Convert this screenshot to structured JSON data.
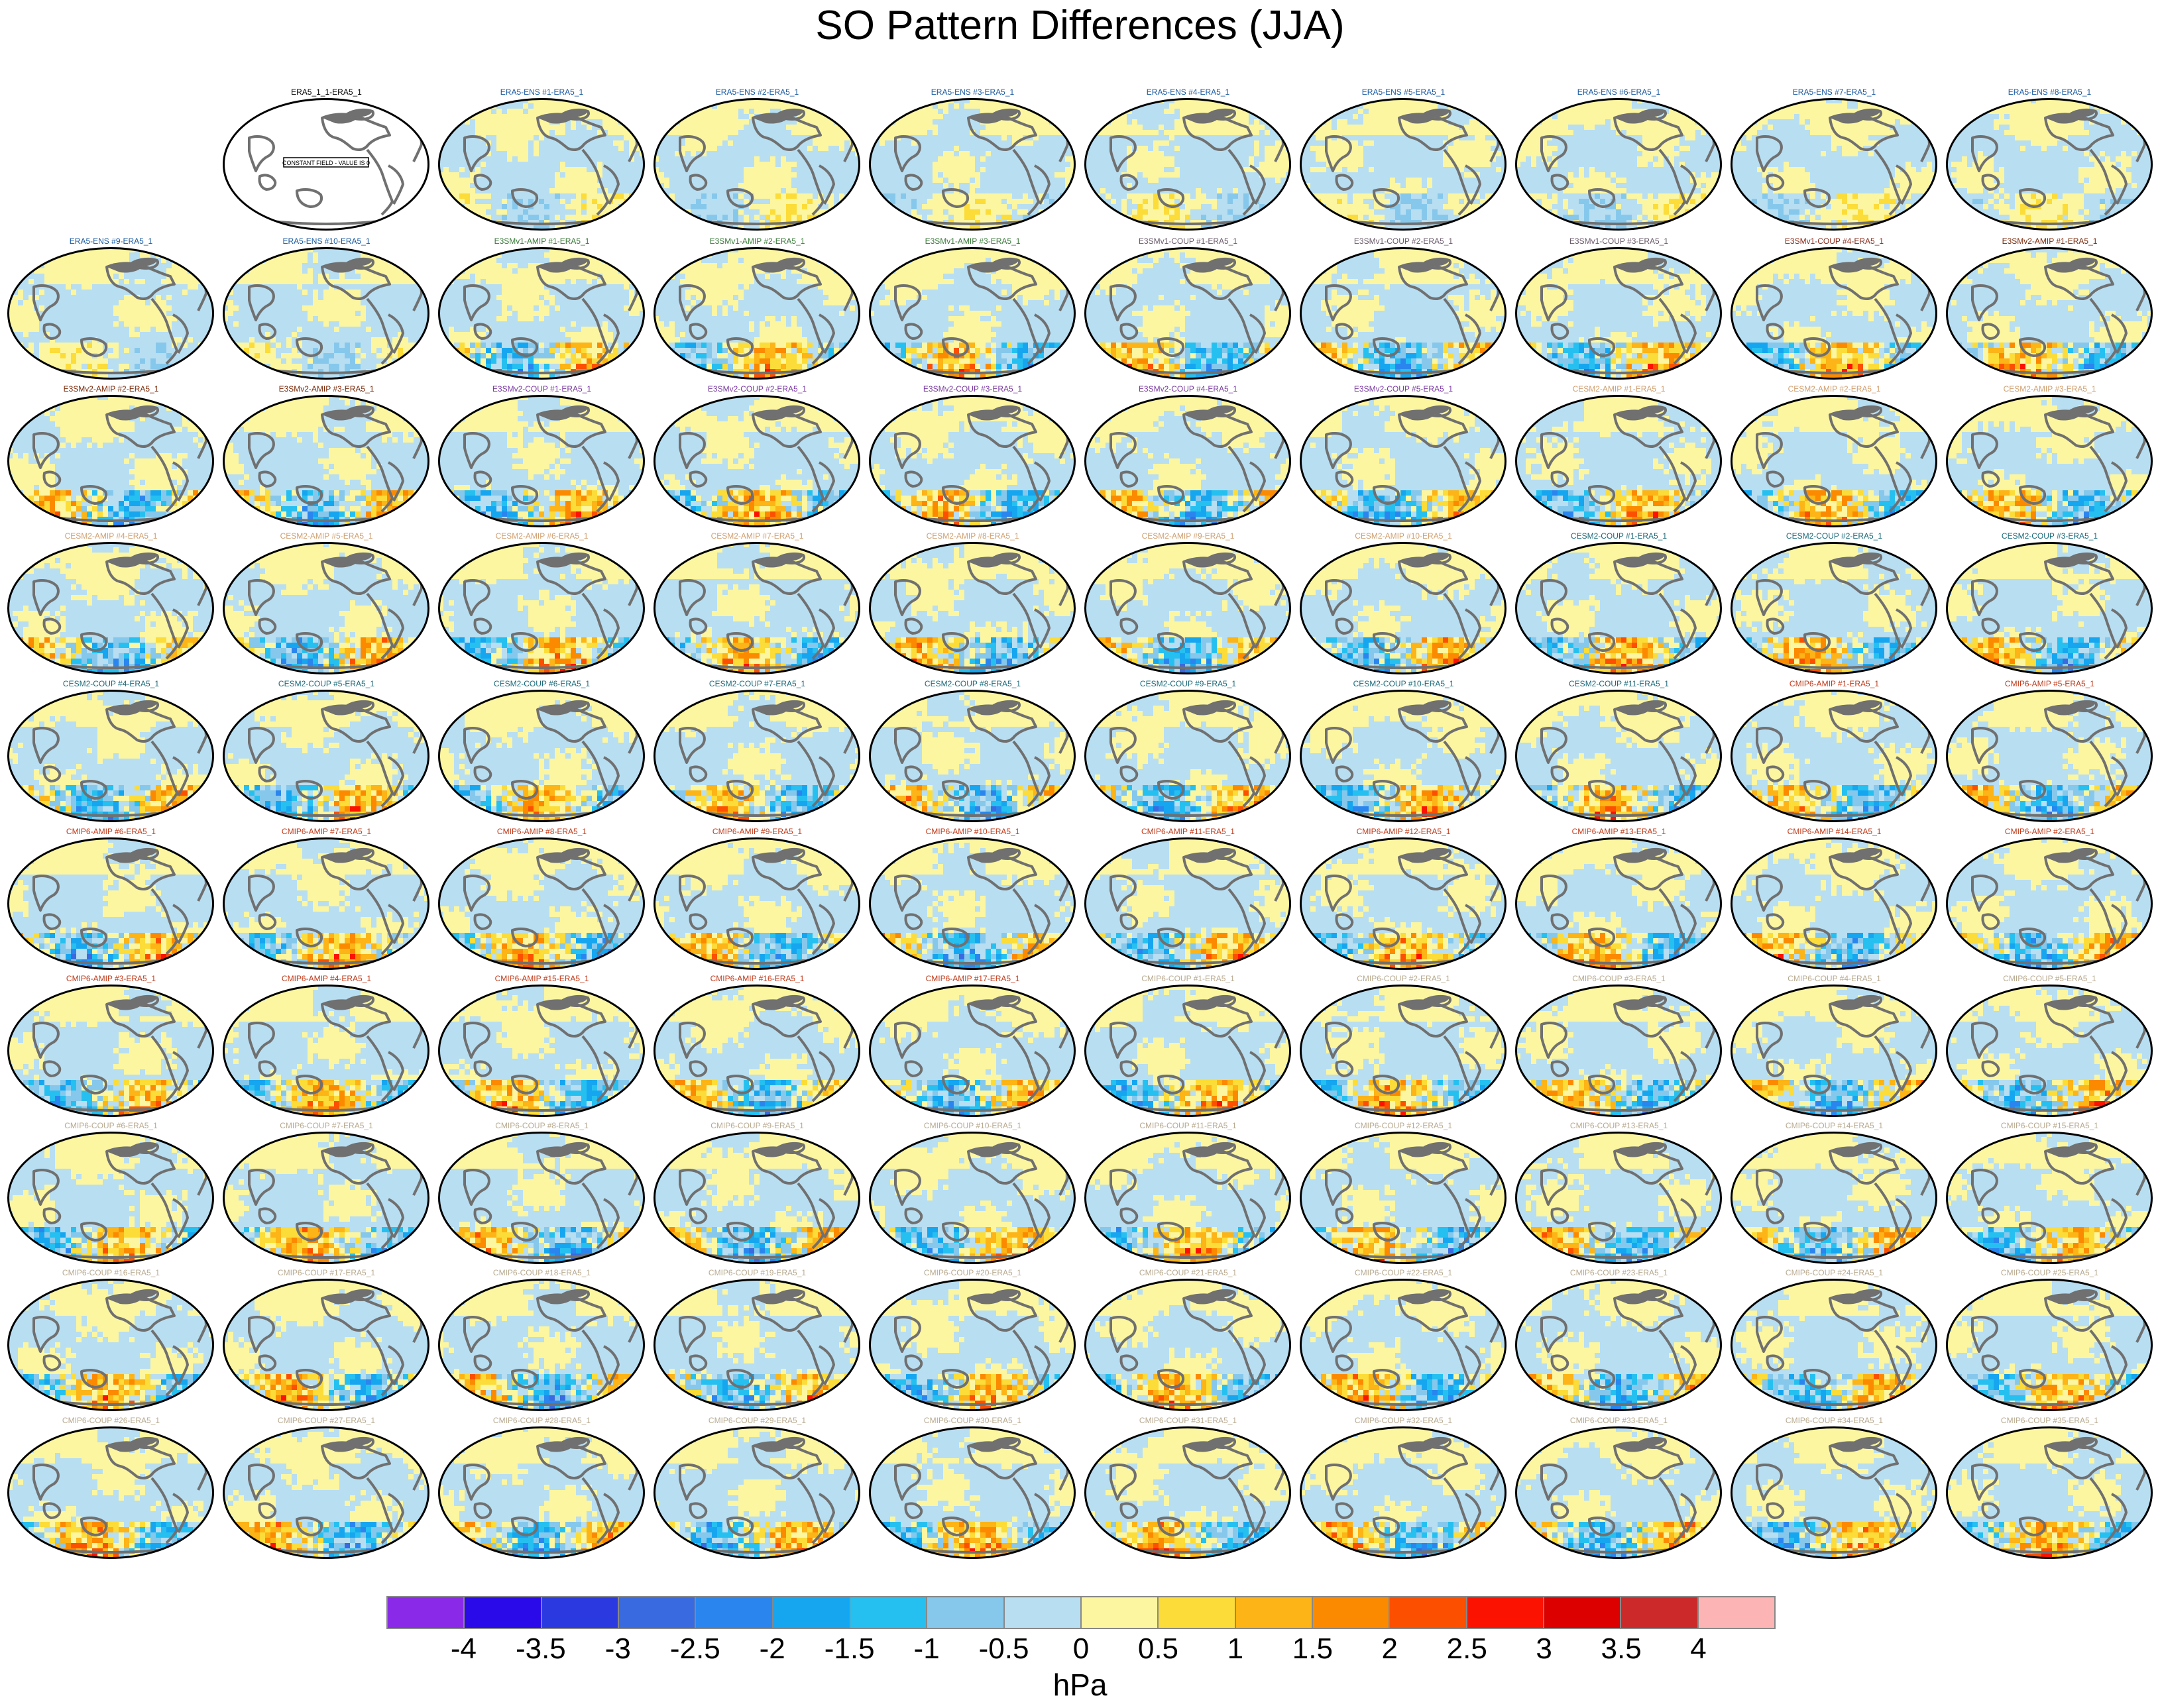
{
  "title": "SO Pattern Differences (JJA)",
  "panel_labels": [
    "ERA5_1_1-ERA5_1",
    "ERA5-ENS   #1-ERA5_1",
    "ERA5-ENS   #2-ERA5_1",
    "ERA5-ENS   #3-ERA5_1",
    "ERA5-ENS   #4-ERA5_1",
    "ERA5-ENS   #5-ERA5_1",
    "ERA5-ENS   #6-ERA5_1",
    "ERA5-ENS   #7-ERA5_1",
    "ERA5-ENS   #8-ERA5_1",
    "ERA5-ENS   #9-ERA5_1",
    "ERA5-ENS   #10-ERA5_1",
    "E3SMv1-AMIP #1-ERA5_1",
    "E3SMv1-AMIP #2-ERA5_1",
    "E3SMv1-AMIP #3-ERA5_1",
    "E3SMv1-COUP #1-ERA5_1",
    "E3SMv1-COUP #2-ERA5_1",
    "E3SMv1-COUP #3-ERA5_1",
    "E3SMv1-COUP #4-ERA5_1",
    "E3SMv2-AMIP #1-ERA5_1",
    "E3SMv2-AMIP #2-ERA5_1",
    "E3SMv2-AMIP #3-ERA5_1",
    "E3SMv2-COUP #1-ERA5_1",
    "E3SMv2-COUP #2-ERA5_1",
    "E3SMv2-COUP #3-ERA5_1",
    "E3SMv2-COUP #4-ERA5_1",
    "E3SMv2-COUP #5-ERA5_1",
    "CESM2-AMIP #1-ERA5_1",
    "CESM2-AMIP #2-ERA5_1",
    "CESM2-AMIP #3-ERA5_1",
    "CESM2-AMIP #4-ERA5_1",
    "CESM2-AMIP #5-ERA5_1",
    "CESM2-AMIP #6-ERA5_1",
    "CESM2-AMIP #7-ERA5_1",
    "CESM2-AMIP #8-ERA5_1",
    "CESM2-AMIP #9-ERA5_1",
    "CESM2-AMIP #10-ERA5_1",
    "CESM2-COUP #1-ERA5_1",
    "CESM2-COUP #2-ERA5_1",
    "CESM2-COUP #3-ERA5_1",
    "CESM2-COUP #4-ERA5_1",
    "CESM2-COUP #5-ERA5_1",
    "CESM2-COUP #6-ERA5_1",
    "CESM2-COUP #7-ERA5_1",
    "CESM2-COUP #8-ERA5_1",
    "CESM2-COUP #9-ERA5_1",
    "CESM2-COUP #10-ERA5_1",
    "CESM2-COUP #11-ERA5_1",
    "CMIP6-AMIP #1-ERA5_1",
    "CMIP6-AMIP #5-ERA5_1",
    "CMIP6-AMIP #6-ERA5_1",
    "CMIP6-AMIP #7-ERA5_1",
    "CMIP6-AMIP #8-ERA5_1",
    "CMIP6-AMIP #9-ERA5_1",
    "CMIP6-AMIP #10-ERA5_1",
    "CMIP6-AMIP #11-ERA5_1",
    "CMIP6-AMIP #12-ERA5_1",
    "CMIP6-AMIP #13-ERA5_1",
    "CMIP6-AMIP #14-ERA5_1",
    "CMIP6-AMIP #2-ERA5_1",
    "CMIP6-AMIP #3-ERA5_1",
    "CMIP6-AMIP #4-ERA5_1",
    "CMIP6-AMIP #15-ERA5_1",
    "CMIP6-AMIP #16-ERA5_1",
    "CMIP6-AMIP #17-ERA5_1",
    "CMIP6-COUP #1-ERA5_1",
    "CMIP6-COUP #2-ERA5_1",
    "CMIP6-COUP #3-ERA5_1",
    "CMIP6-COUP #4-ERA5_1",
    "CMIP6-COUP #5-ERA5_1",
    "CMIP6-COUP #6-ERA5_1",
    "CMIP6-COUP #7-ERA5_1",
    "CMIP6-COUP #8-ERA5_1",
    "CMIP6-COUP #9-ERA5_1",
    "CMIP6-COUP #10-ERA5_1",
    "CMIP6-COUP #11-ERA5_1",
    "CMIP6-COUP #12-ERA5_1",
    "CMIP6-COUP #13-ERA5_1",
    "CMIP6-COUP #14-ERA5_1",
    "CMIP6-COUP #15-ERA5_1",
    "CMIP6-COUP #16-ERA5_1",
    "CMIP6-COUP #17-ERA5_1",
    "CMIP6-COUP #18-ERA5_1",
    "CMIP6-COUP #19-ERA5_1",
    "CMIP6-COUP #20-ERA5_1",
    "CMIP6-COUP #21-ERA5_1",
    "CMIP6-COUP #22-ERA5_1",
    "CMIP6-COUP #23-ERA5_1",
    "CMIP6-COUP #24-ERA5_1",
    "CMIP6-COUP #25-ERA5_1",
    "CMIP6-COUP #26-ERA5_1",
    "CMIP6-COUP #27-ERA5_1",
    "CMIP6-COUP #28-ERA5_1",
    "CMIP6-COUP #29-ERA5_1",
    "CMIP6-COUP #30-ERA5_1",
    "CMIP6-COUP #31-ERA5_1",
    "CMIP6-COUP #32-ERA5_1",
    "CMIP6-COUP #33-ERA5_1",
    "CMIP6-COUP #34-ERA5_1",
    "CMIP6-COUP #35-ERA5_1"
  ],
  "reference_panel_note": "CONSTANT FIELD - VALUE IS 0",
  "group_label_colors": {
    "ERA5_1": "#000000",
    "ERA5-ENS": "#1a5aa0",
    "E3SMv1-AMIP": "#3a7a3a",
    "E3SMv1-COUP": "#6a5a6a",
    "E3SMv1-COUP #4": "#8a2a1a",
    "E3SMv2-AMIP": "#7a2a0a",
    "E3SMv2-COUP": "#7a3aa0",
    "CESM2-AMIP": "#d0a070",
    "CESM2-COUP": "#1a6a7a",
    "CMIP6-AMIP": "#c03a1a",
    "CMIP6-COUP": "#b8aa90"
  },
  "colorbar": {
    "colors": [
      "#8a2ae8",
      "#2a0ae8",
      "#2a3ae0",
      "#3a6ae0",
      "#2a86ee",
      "#16a6f0",
      "#26c0f0",
      "#86c8ec",
      "#b8def2",
      "#fcf6a0",
      "#fcdc38",
      "#fcb416",
      "#fc8a00",
      "#fc5000",
      "#fc1200",
      "#dc0000",
      "#cc2a2a",
      "#fcb4b4"
    ],
    "tick_labels": [
      "-4",
      "-3.5",
      "-3",
      "-2.5",
      "-2",
      "-1.5",
      "-1",
      "-0.5",
      "0",
      "0.5",
      "1",
      "1.5",
      "2",
      "2.5",
      "3",
      "3.5",
      "4"
    ],
    "units": "hPa"
  },
  "map_style": {
    "land_color": "#707070",
    "ocean_base": "#b8def2",
    "outline": "#000000"
  }
}
